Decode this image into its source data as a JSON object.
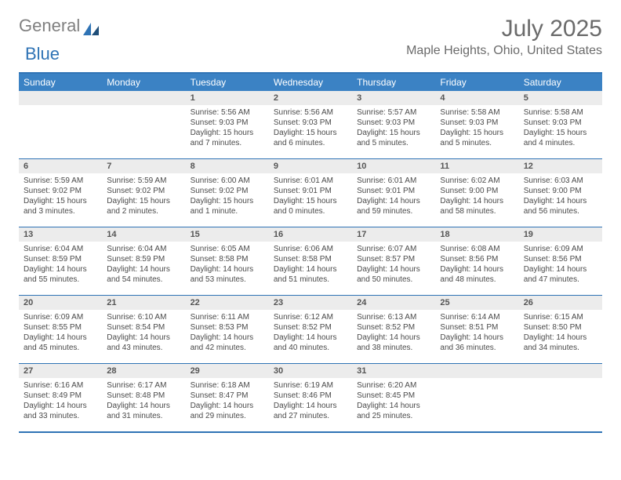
{
  "brand": {
    "part1": "General",
    "part2": "Blue"
  },
  "title": "July 2025",
  "location": "Maple Heights, Ohio, United States",
  "colors": {
    "header_bg": "#3b82c4",
    "border": "#2f73b5",
    "daynum_bg": "#ececec",
    "text": "#4a4a4a",
    "title_text": "#6b6b6b"
  },
  "weekdays": [
    "Sunday",
    "Monday",
    "Tuesday",
    "Wednesday",
    "Thursday",
    "Friday",
    "Saturday"
  ],
  "weeks": [
    [
      {
        "day": "",
        "sunrise": "",
        "sunset": "",
        "daylight": ""
      },
      {
        "day": "",
        "sunrise": "",
        "sunset": "",
        "daylight": ""
      },
      {
        "day": "1",
        "sunrise": "Sunrise: 5:56 AM",
        "sunset": "Sunset: 9:03 PM",
        "daylight": "Daylight: 15 hours and 7 minutes."
      },
      {
        "day": "2",
        "sunrise": "Sunrise: 5:56 AM",
        "sunset": "Sunset: 9:03 PM",
        "daylight": "Daylight: 15 hours and 6 minutes."
      },
      {
        "day": "3",
        "sunrise": "Sunrise: 5:57 AM",
        "sunset": "Sunset: 9:03 PM",
        "daylight": "Daylight: 15 hours and 5 minutes."
      },
      {
        "day": "4",
        "sunrise": "Sunrise: 5:58 AM",
        "sunset": "Sunset: 9:03 PM",
        "daylight": "Daylight: 15 hours and 5 minutes."
      },
      {
        "day": "5",
        "sunrise": "Sunrise: 5:58 AM",
        "sunset": "Sunset: 9:03 PM",
        "daylight": "Daylight: 15 hours and 4 minutes."
      }
    ],
    [
      {
        "day": "6",
        "sunrise": "Sunrise: 5:59 AM",
        "sunset": "Sunset: 9:02 PM",
        "daylight": "Daylight: 15 hours and 3 minutes."
      },
      {
        "day": "7",
        "sunrise": "Sunrise: 5:59 AM",
        "sunset": "Sunset: 9:02 PM",
        "daylight": "Daylight: 15 hours and 2 minutes."
      },
      {
        "day": "8",
        "sunrise": "Sunrise: 6:00 AM",
        "sunset": "Sunset: 9:02 PM",
        "daylight": "Daylight: 15 hours and 1 minute."
      },
      {
        "day": "9",
        "sunrise": "Sunrise: 6:01 AM",
        "sunset": "Sunset: 9:01 PM",
        "daylight": "Daylight: 15 hours and 0 minutes."
      },
      {
        "day": "10",
        "sunrise": "Sunrise: 6:01 AM",
        "sunset": "Sunset: 9:01 PM",
        "daylight": "Daylight: 14 hours and 59 minutes."
      },
      {
        "day": "11",
        "sunrise": "Sunrise: 6:02 AM",
        "sunset": "Sunset: 9:00 PM",
        "daylight": "Daylight: 14 hours and 58 minutes."
      },
      {
        "day": "12",
        "sunrise": "Sunrise: 6:03 AM",
        "sunset": "Sunset: 9:00 PM",
        "daylight": "Daylight: 14 hours and 56 minutes."
      }
    ],
    [
      {
        "day": "13",
        "sunrise": "Sunrise: 6:04 AM",
        "sunset": "Sunset: 8:59 PM",
        "daylight": "Daylight: 14 hours and 55 minutes."
      },
      {
        "day": "14",
        "sunrise": "Sunrise: 6:04 AM",
        "sunset": "Sunset: 8:59 PM",
        "daylight": "Daylight: 14 hours and 54 minutes."
      },
      {
        "day": "15",
        "sunrise": "Sunrise: 6:05 AM",
        "sunset": "Sunset: 8:58 PM",
        "daylight": "Daylight: 14 hours and 53 minutes."
      },
      {
        "day": "16",
        "sunrise": "Sunrise: 6:06 AM",
        "sunset": "Sunset: 8:58 PM",
        "daylight": "Daylight: 14 hours and 51 minutes."
      },
      {
        "day": "17",
        "sunrise": "Sunrise: 6:07 AM",
        "sunset": "Sunset: 8:57 PM",
        "daylight": "Daylight: 14 hours and 50 minutes."
      },
      {
        "day": "18",
        "sunrise": "Sunrise: 6:08 AM",
        "sunset": "Sunset: 8:56 PM",
        "daylight": "Daylight: 14 hours and 48 minutes."
      },
      {
        "day": "19",
        "sunrise": "Sunrise: 6:09 AM",
        "sunset": "Sunset: 8:56 PM",
        "daylight": "Daylight: 14 hours and 47 minutes."
      }
    ],
    [
      {
        "day": "20",
        "sunrise": "Sunrise: 6:09 AM",
        "sunset": "Sunset: 8:55 PM",
        "daylight": "Daylight: 14 hours and 45 minutes."
      },
      {
        "day": "21",
        "sunrise": "Sunrise: 6:10 AM",
        "sunset": "Sunset: 8:54 PM",
        "daylight": "Daylight: 14 hours and 43 minutes."
      },
      {
        "day": "22",
        "sunrise": "Sunrise: 6:11 AM",
        "sunset": "Sunset: 8:53 PM",
        "daylight": "Daylight: 14 hours and 42 minutes."
      },
      {
        "day": "23",
        "sunrise": "Sunrise: 6:12 AM",
        "sunset": "Sunset: 8:52 PM",
        "daylight": "Daylight: 14 hours and 40 minutes."
      },
      {
        "day": "24",
        "sunrise": "Sunrise: 6:13 AM",
        "sunset": "Sunset: 8:52 PM",
        "daylight": "Daylight: 14 hours and 38 minutes."
      },
      {
        "day": "25",
        "sunrise": "Sunrise: 6:14 AM",
        "sunset": "Sunset: 8:51 PM",
        "daylight": "Daylight: 14 hours and 36 minutes."
      },
      {
        "day": "26",
        "sunrise": "Sunrise: 6:15 AM",
        "sunset": "Sunset: 8:50 PM",
        "daylight": "Daylight: 14 hours and 34 minutes."
      }
    ],
    [
      {
        "day": "27",
        "sunrise": "Sunrise: 6:16 AM",
        "sunset": "Sunset: 8:49 PM",
        "daylight": "Daylight: 14 hours and 33 minutes."
      },
      {
        "day": "28",
        "sunrise": "Sunrise: 6:17 AM",
        "sunset": "Sunset: 8:48 PM",
        "daylight": "Daylight: 14 hours and 31 minutes."
      },
      {
        "day": "29",
        "sunrise": "Sunrise: 6:18 AM",
        "sunset": "Sunset: 8:47 PM",
        "daylight": "Daylight: 14 hours and 29 minutes."
      },
      {
        "day": "30",
        "sunrise": "Sunrise: 6:19 AM",
        "sunset": "Sunset: 8:46 PM",
        "daylight": "Daylight: 14 hours and 27 minutes."
      },
      {
        "day": "31",
        "sunrise": "Sunrise: 6:20 AM",
        "sunset": "Sunset: 8:45 PM",
        "daylight": "Daylight: 14 hours and 25 minutes."
      },
      {
        "day": "",
        "sunrise": "",
        "sunset": "",
        "daylight": ""
      },
      {
        "day": "",
        "sunrise": "",
        "sunset": "",
        "daylight": ""
      }
    ]
  ]
}
